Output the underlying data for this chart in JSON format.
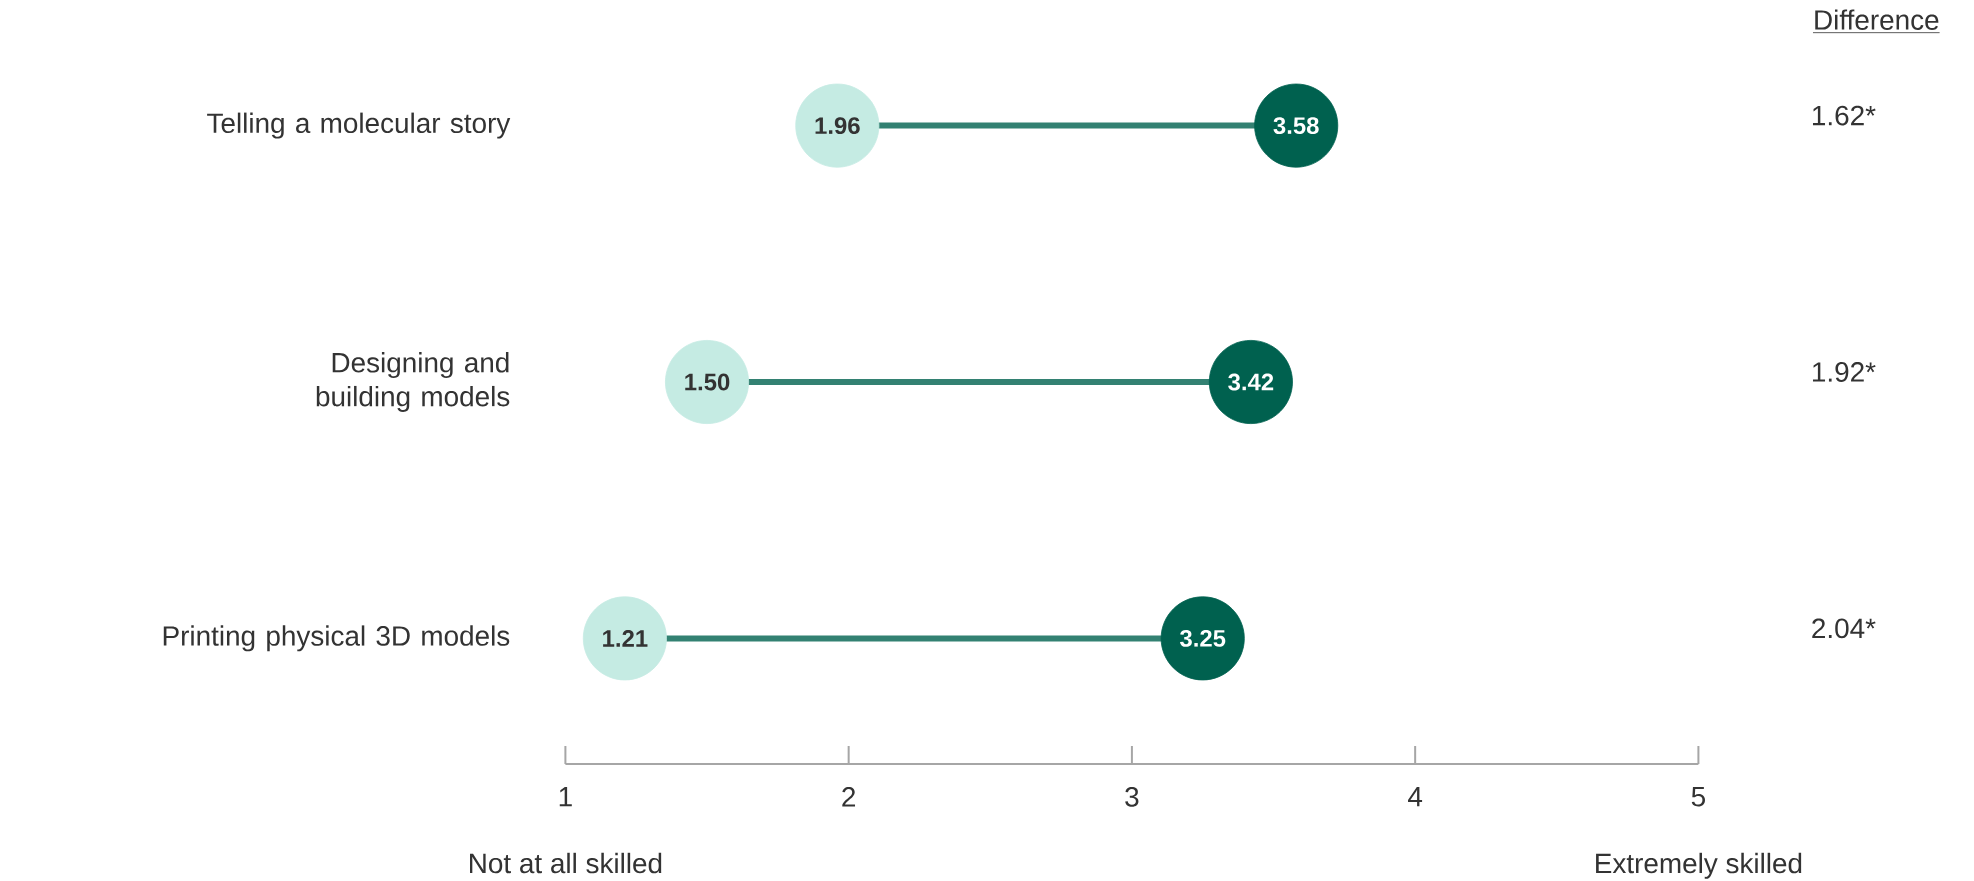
{
  "chart_data": {
    "type": "scatter",
    "orientation": "horizontal",
    "categories": [
      "Telling a molecular story",
      "Designing and building models",
      "Printing physical 3D models"
    ],
    "series": [
      {
        "color": "#c5ebe3",
        "values": [
          1.96,
          1.5,
          1.21
        ],
        "value_labels": [
          "1.96",
          "1.50",
          "1.21"
        ]
      },
      {
        "color": "#00614f",
        "values": [
          3.58,
          3.42,
          3.25
        ],
        "value_labels": [
          "3.58",
          "3.42",
          "3.25"
        ]
      }
    ],
    "xlim": [
      1,
      5
    ],
    "xticks": [
      {
        "value": 1,
        "label": "1"
      },
      {
        "value": 2,
        "label": "2"
      },
      {
        "value": 3,
        "label": "3"
      },
      {
        "value": 4,
        "label": "4"
      },
      {
        "value": 5,
        "label": "5"
      }
    ],
    "annotations": [
      "Difference",
      "1.62*",
      "1.92*",
      "2.04*",
      "Not at all skilled",
      "Extremely skilled"
    ],
    "marker": "circle",
    "grid": false
  }
}
